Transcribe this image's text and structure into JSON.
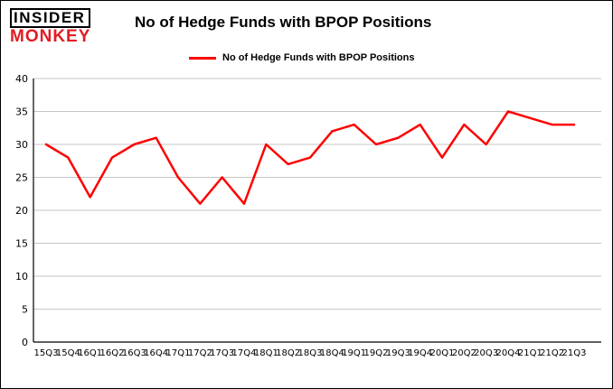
{
  "header": {
    "logo_line1": "INSIDER",
    "logo_line2": "MONKEY",
    "title": "No of Hedge Funds with BPOP Positions"
  },
  "legend": {
    "label": "No of Hedge Funds with BPOP Positions",
    "color": "#ff0000"
  },
  "chart_data": {
    "type": "line",
    "title": "No of Hedge Funds with BPOP Positions",
    "categories": [
      "15Q3",
      "15Q4",
      "16Q1",
      "16Q2",
      "16Q3",
      "16Q4",
      "17Q1",
      "17Q2",
      "17Q3",
      "17Q4",
      "18Q1",
      "18Q2",
      "18Q3",
      "18Q4",
      "19Q1",
      "19Q2",
      "19Q3",
      "19Q4",
      "20Q1",
      "20Q2",
      "20Q3",
      "20Q4",
      "21Q1",
      "21Q2",
      "21Q3"
    ],
    "series": [
      {
        "name": "No of Hedge Funds with BPOP Positions",
        "color": "#ff0000",
        "values": [
          30,
          28,
          22,
          28,
          30,
          31,
          25,
          21,
          25,
          21,
          30,
          27,
          28,
          32,
          33,
          30,
          31,
          33,
          28,
          33,
          30,
          35,
          34,
          33,
          33
        ]
      }
    ],
    "xlabel": "",
    "ylabel": "",
    "ylim": [
      0,
      40
    ],
    "ytick_interval": 5,
    "grid": true,
    "gridline_color": "#c6c6c6",
    "legend_position": "top-left"
  }
}
